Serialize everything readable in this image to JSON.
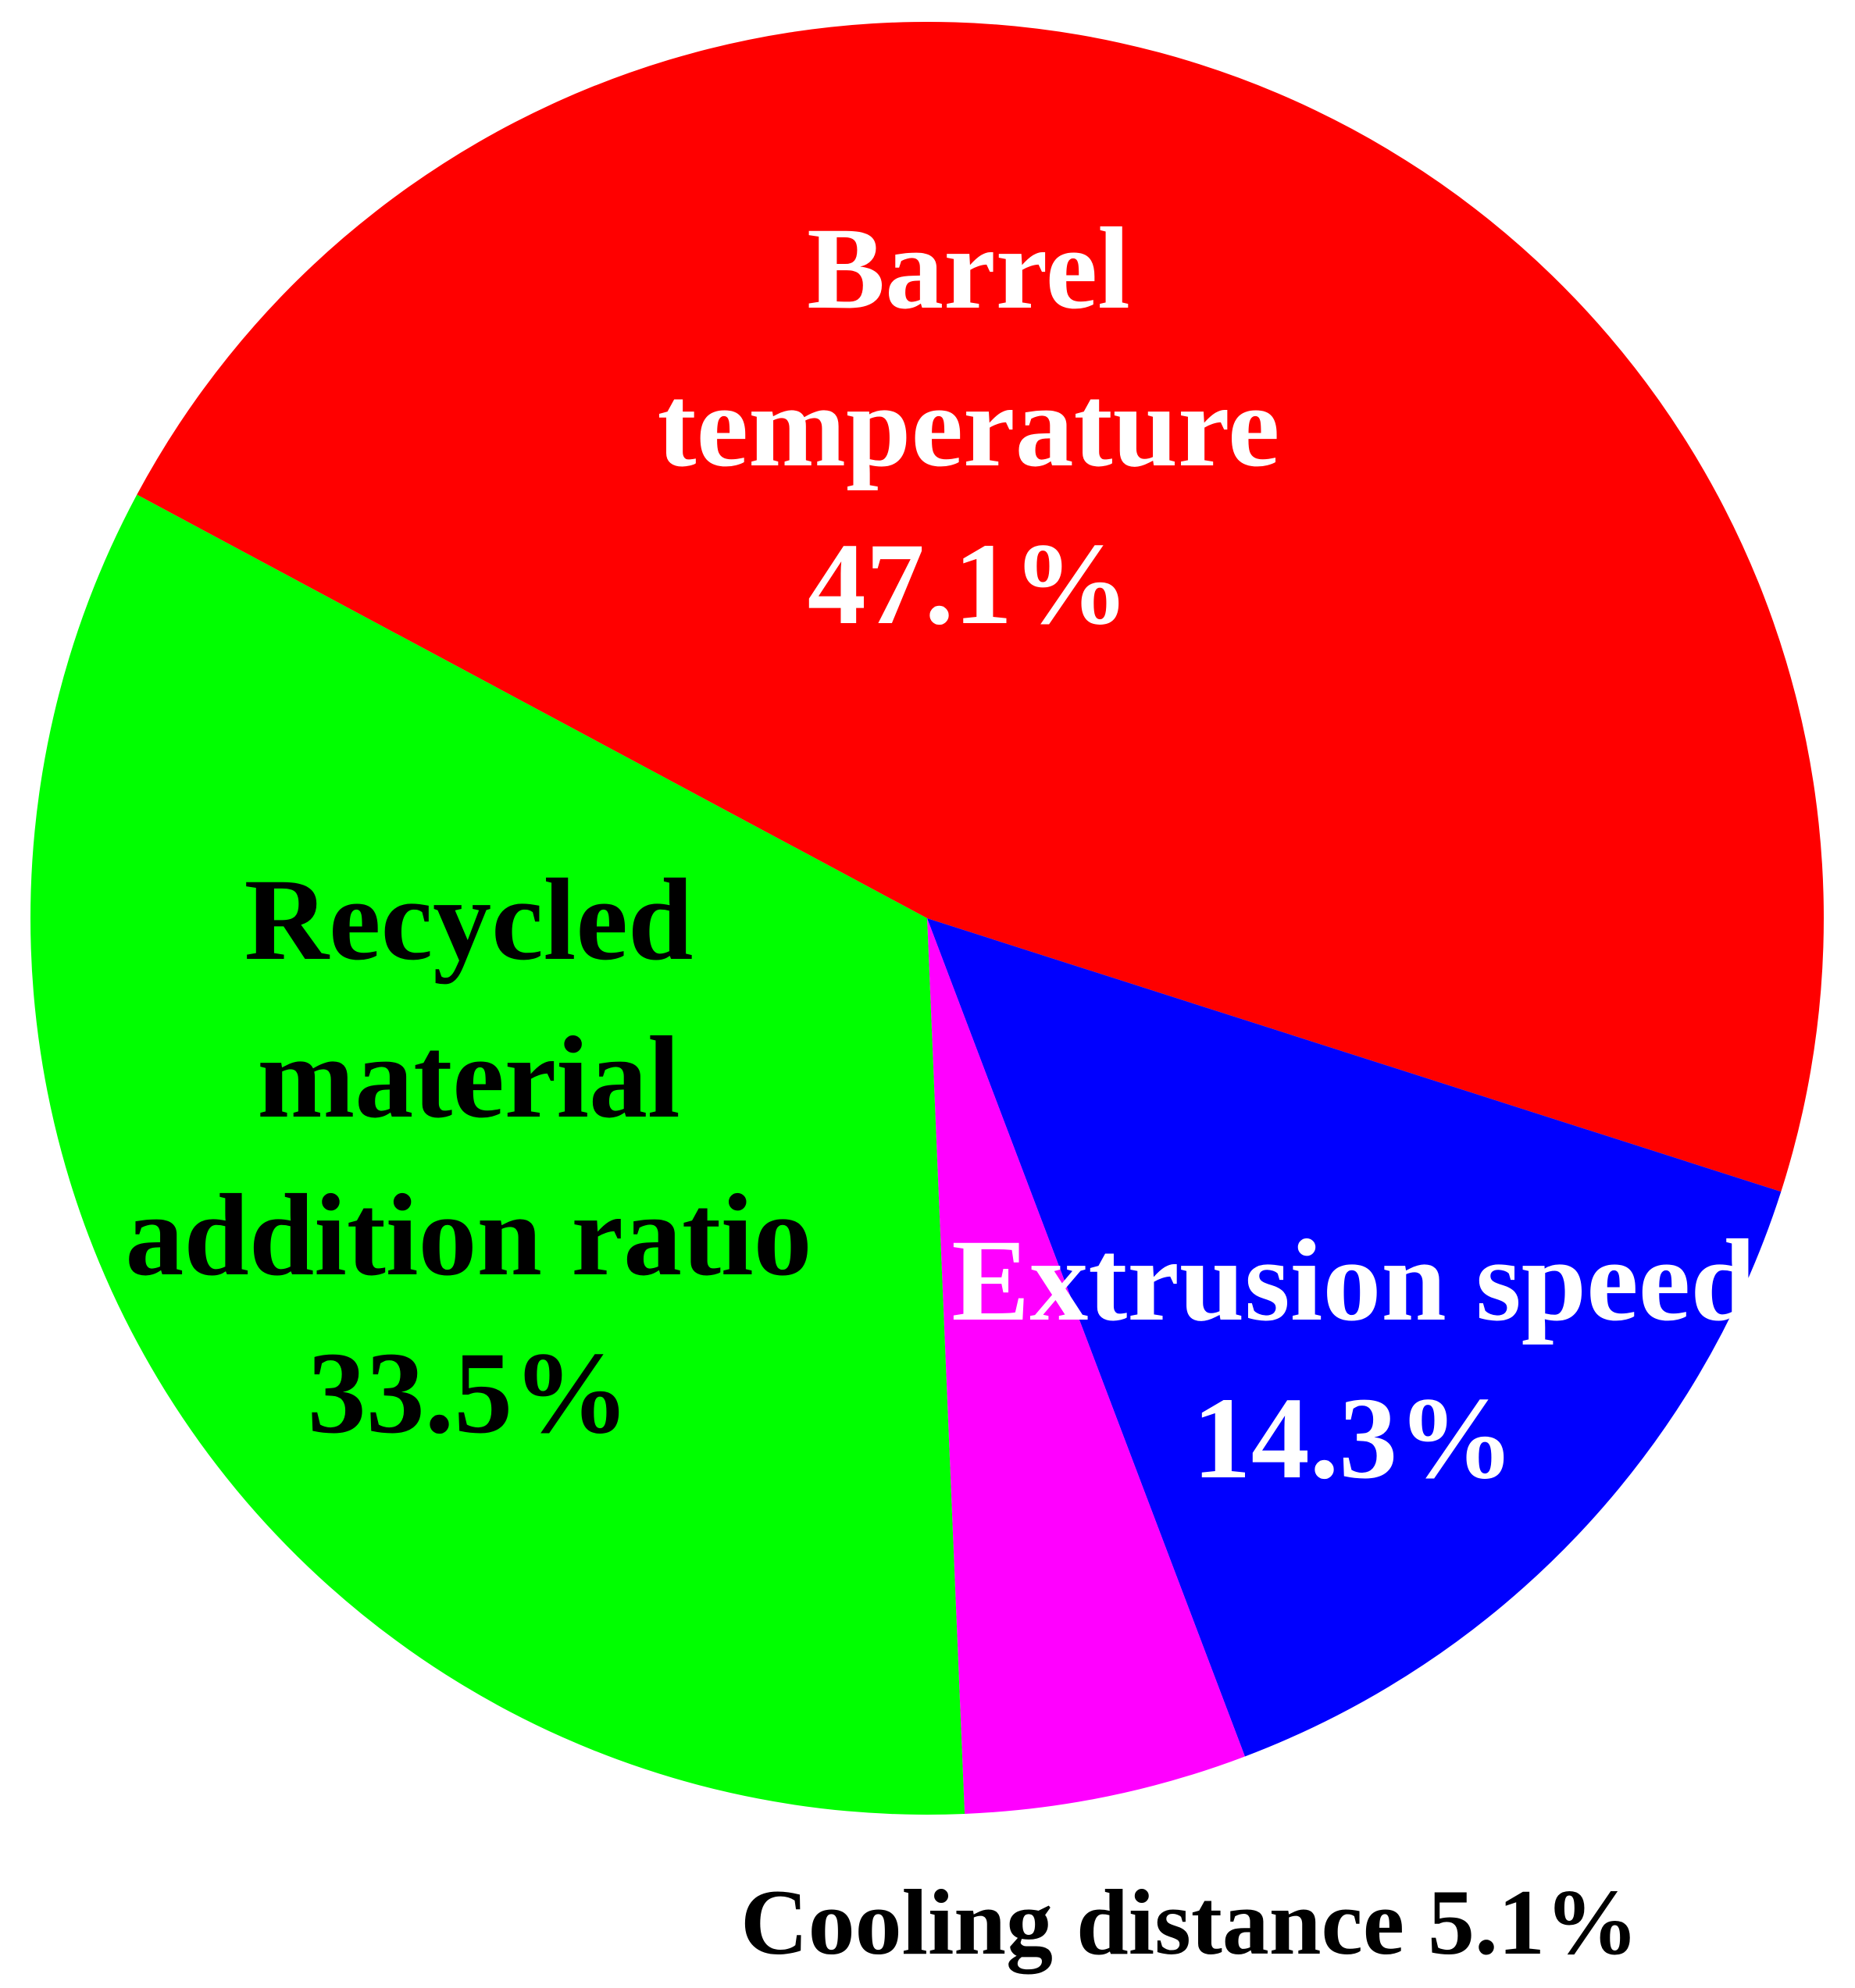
{
  "chart_data": {
    "type": "pie",
    "categories": [
      "Barrel temperature",
      "Extrusion speed",
      "Cooling distance",
      "Recycled material addition ratio"
    ],
    "values": [
      47.1,
      14.3,
      5.1,
      33.5
    ],
    "value_labels": [
      "47.1%",
      "14.3%",
      "5.1%",
      "33.5%"
    ],
    "colors": [
      "#ff0000",
      "#0000ff",
      "#ff00ff",
      "#00ff00"
    ]
  }
}
